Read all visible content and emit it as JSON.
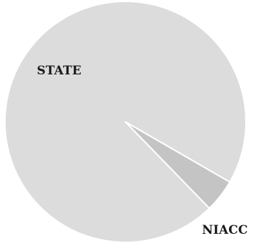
{
  "chart_data": {
    "type": "pie",
    "start_angle_deg": 120,
    "direction": "counterclockwise",
    "slices": [
      {
        "label": "STATE",
        "value": 95.6,
        "color": "#dcdcdc"
      },
      {
        "label": "NIACC",
        "value": 4.4,
        "color": "#c4c4c4"
      }
    ],
    "slice_border_color": "#ffffff",
    "legend": "none"
  }
}
